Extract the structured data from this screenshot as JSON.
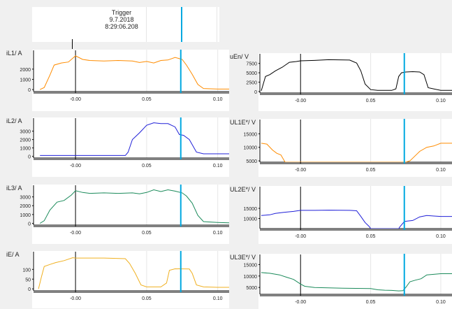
{
  "trigger": {
    "title": "Trigger",
    "date": "9.7.2018",
    "time": "8:29:06.208"
  },
  "cursor_x": 0.074,
  "colors": {
    "cursor": "#00a8e0",
    "axis": "#000000",
    "grid": "#e6e6e6"
  },
  "chart_data": [
    {
      "type": "line",
      "id": "il1",
      "ylabel": "iL1/ A",
      "color": "#ff8c00",
      "xlim": [
        -0.03,
        0.108
      ],
      "ylim": [
        -200,
        3500
      ],
      "yticks": [
        "0",
        "1000",
        "2000"
      ],
      "ytickvals": [
        0,
        1000,
        2000
      ],
      "xticks": [
        "-0.00",
        "0.05",
        "0.10"
      ],
      "xtickvals": [
        0,
        0.05,
        0.1
      ],
      "x": [
        -0.025,
        -0.022,
        -0.018,
        -0.015,
        -0.01,
        -0.005,
        0,
        0.005,
        0.01,
        0.02,
        0.03,
        0.04,
        0.045,
        0.05,
        0.055,
        0.06,
        0.065,
        0.07,
        0.075,
        0.078,
        0.082,
        0.086,
        0.09,
        0.1,
        0.108
      ],
      "y": [
        0,
        200,
        1400,
        2400,
        2600,
        2700,
        3300,
        2950,
        2850,
        2800,
        2850,
        2800,
        2650,
        2750,
        2600,
        2850,
        2900,
        3150,
        2950,
        2400,
        1500,
        500,
        100,
        50,
        50
      ]
    },
    {
      "type": "line",
      "id": "ul_en",
      "ylabel": "uEn/ V",
      "color": "#000000",
      "xlim": [
        -0.03,
        0.108
      ],
      "ylim": [
        -400,
        9500
      ],
      "yticks": [
        "0",
        "2500",
        "5000",
        "7500"
      ],
      "ytickvals": [
        0,
        2500,
        5000,
        7500
      ],
      "xticks": [
        "-0.00",
        "0.05",
        "0.10"
      ],
      "xtickvals": [
        0,
        0.05,
        0.1
      ],
      "x": [
        -0.028,
        -0.025,
        -0.022,
        -0.018,
        -0.013,
        -0.008,
        -0.003,
        0,
        0.01,
        0.02,
        0.035,
        0.04,
        0.043,
        0.046,
        0.05,
        0.055,
        0.065,
        0.068,
        0.07,
        0.072,
        0.075,
        0.08,
        0.085,
        0.088,
        0.091,
        0.1,
        0.108
      ],
      "y": [
        200,
        4000,
        4500,
        5500,
        6500,
        7800,
        8000,
        8200,
        8300,
        8500,
        8400,
        7600,
        5500,
        2000,
        500,
        300,
        300,
        700,
        4000,
        5000,
        5200,
        5300,
        5200,
        4500,
        1000,
        300,
        300
      ]
    },
    {
      "type": "line",
      "id": "il2",
      "ylabel": "iL2/ A",
      "color": "#2020d8",
      "xlim": [
        -0.03,
        0.108
      ],
      "ylim": [
        -200,
        4300
      ],
      "yticks": [
        "0",
        "1000",
        "2000",
        "3000"
      ],
      "ytickvals": [
        0,
        1000,
        2000,
        3000
      ],
      "xticks": [
        "-0.00",
        "0.05",
        "0.10"
      ],
      "xtickvals": [
        0,
        0.05,
        0.1
      ],
      "x": [
        -0.025,
        -0.01,
        0,
        0.02,
        0.035,
        0.037,
        0.04,
        0.045,
        0.05,
        0.055,
        0.06,
        0.065,
        0.07,
        0.073,
        0.076,
        0.08,
        0.085,
        0.09,
        0.1,
        0.108
      ],
      "y": [
        100,
        100,
        100,
        100,
        100,
        500,
        2000,
        2800,
        3700,
        4000,
        3900,
        3900,
        3500,
        2600,
        2500,
        2000,
        500,
        300,
        300,
        300
      ]
    },
    {
      "type": "line",
      "id": "ul1e",
      "ylabel": "UL1E*/ V",
      "color": "#ff8c00",
      "xlim": [
        -0.03,
        0.108
      ],
      "ylim": [
        4500,
        19500
      ],
      "yticks": [
        "5000",
        "10000",
        "15000"
      ],
      "ytickvals": [
        5000,
        10000,
        15000
      ],
      "xticks": [
        "-0.00",
        "0.05",
        "0.10"
      ],
      "xtickvals": [
        0,
        0.05,
        0.1
      ],
      "x": [
        -0.028,
        -0.024,
        -0.02,
        -0.017,
        -0.014,
        -0.011,
        0.075,
        0.078,
        0.081,
        0.085,
        0.09,
        0.095,
        0.1,
        0.108
      ],
      "y": [
        11500,
        11200,
        9000,
        7800,
        7200,
        4500,
        4500,
        5000,
        6500,
        8500,
        10000,
        10500,
        11500,
        11500
      ]
    },
    {
      "type": "line",
      "id": "il3",
      "ylabel": "iL3/ A",
      "color": "#1a8a5a",
      "xlim": [
        -0.03,
        0.108
      ],
      "ylim": [
        -200,
        4000
      ],
      "yticks": [
        "0",
        "1000",
        "2000",
        "3000"
      ],
      "ytickvals": [
        0,
        1000,
        2000,
        3000
      ],
      "xticks": [
        "-0.00",
        "0.05",
        "0.10"
      ],
      "xtickvals": [
        0,
        0.05,
        0.1
      ],
      "x": [
        -0.025,
        -0.022,
        -0.018,
        -0.013,
        -0.008,
        -0.003,
        0,
        0.005,
        0.01,
        0.02,
        0.03,
        0.04,
        0.045,
        0.05,
        0.055,
        0.06,
        0.065,
        0.07,
        0.075,
        0.078,
        0.082,
        0.086,
        0.09,
        0.1,
        0.108
      ],
      "y": [
        0,
        300,
        1500,
        2400,
        2600,
        3200,
        3700,
        3500,
        3400,
        3450,
        3400,
        3450,
        3350,
        3500,
        3800,
        3600,
        3800,
        3650,
        3450,
        3100,
        2300,
        900,
        200,
        100,
        50
      ]
    },
    {
      "type": "line",
      "id": "ul2e",
      "ylabel": "UL2E*/ V",
      "color": "#2020d8",
      "xlim": [
        -0.03,
        0.108
      ],
      "ylim": [
        5000,
        19500
      ],
      "yticks": [
        "10000",
        "15000"
      ],
      "ytickvals": [
        10000,
        15000
      ],
      "xticks": [
        "-0.00",
        "0.05",
        "0.10"
      ],
      "xtickvals": [
        0,
        0.05,
        0.1
      ],
      "x": [
        -0.028,
        -0.022,
        -0.018,
        -0.012,
        -0.005,
        0,
        0.01,
        0.02,
        0.035,
        0.04,
        0.043,
        0.046,
        0.049,
        0.05,
        0.07,
        0.071,
        0.074,
        0.076,
        0.08,
        0.085,
        0.09,
        0.095,
        0.1,
        0.108
      ],
      "y": [
        11500,
        11800,
        12500,
        13000,
        13500,
        14000,
        14000,
        14100,
        14000,
        13800,
        11000,
        8000,
        6000,
        5000,
        5000,
        6000,
        8500,
        8700,
        9000,
        10800,
        11500,
        11200,
        11000,
        11000
      ]
    },
    {
      "type": "line",
      "id": "ie",
      "ylabel": "iE/ A",
      "color": "#f0b020",
      "xlim": [
        -0.03,
        0.108
      ],
      "ylim": [
        -10,
        180
      ],
      "yticks": [
        "0",
        "50",
        "100"
      ],
      "ytickvals": [
        0,
        50,
        100
      ],
      "xticks": [
        "-0.00",
        "0.05",
        "0.10"
      ],
      "xtickvals": [
        0,
        0.05,
        0.1
      ],
      "x": [
        -0.026,
        -0.024,
        -0.022,
        -0.018,
        -0.014,
        -0.008,
        -0.002,
        0,
        0.02,
        0.035,
        0.038,
        0.042,
        0.046,
        0.05,
        0.06,
        0.064,
        0.066,
        0.07,
        0.08,
        0.082,
        0.085,
        0.09,
        0.1,
        0.108
      ],
      "y": [
        0,
        60,
        115,
        125,
        135,
        145,
        160,
        158,
        158,
        155,
        130,
        80,
        20,
        10,
        10,
        30,
        95,
        103,
        102,
        80,
        20,
        10,
        8,
        8
      ]
    },
    {
      "type": "line",
      "id": "ul3e",
      "ylabel": "UL3E*/ V",
      "color": "#1a8a5a",
      "xlim": [
        -0.03,
        0.108
      ],
      "ylim": [
        2000,
        18500
      ],
      "yticks": [
        "5000",
        "10000",
        "15000"
      ],
      "ytickvals": [
        5000,
        10000,
        15000
      ],
      "xticks": [
        "-0.00",
        "0.05",
        "0.10"
      ],
      "xtickvals": [
        0,
        0.05,
        0.1
      ],
      "x": [
        -0.028,
        -0.022,
        -0.015,
        -0.01,
        -0.005,
        0,
        0.003,
        0.01,
        0.02,
        0.03,
        0.04,
        0.05,
        0.055,
        0.06,
        0.065,
        0.07,
        0.073,
        0.075,
        0.078,
        0.082,
        0.086,
        0.09,
        0.1,
        0.108
      ],
      "y": [
        11500,
        11200,
        10500,
        9500,
        8500,
        6500,
        5500,
        5000,
        4800,
        4700,
        4600,
        4500,
        4000,
        3800,
        3700,
        3500,
        3600,
        5000,
        7500,
        8200,
        8800,
        10500,
        11000,
        11000
      ]
    }
  ]
}
